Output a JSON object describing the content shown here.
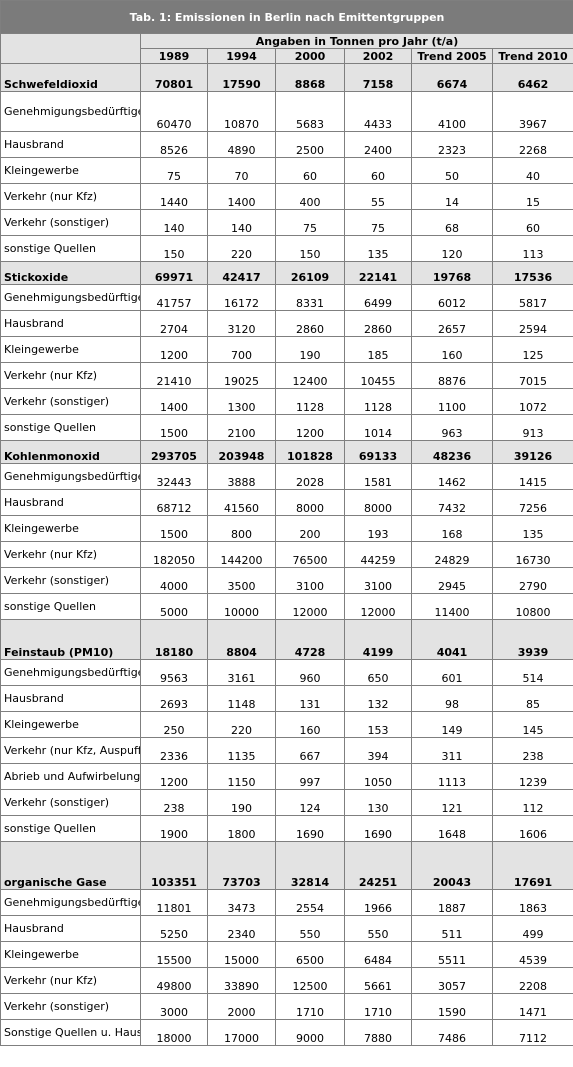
{
  "title": "Tab. 1: Emissionen in Berlin nach Emittentgruppen",
  "unit_header": "Angaben in Tonnen pro Jahr (t/a)",
  "years": [
    "1989",
    "1994",
    "2000",
    "2002",
    "Trend 2005",
    "Trend 2010"
  ],
  "groups": [
    {
      "name": "Schwefeldioxid",
      "total": [
        "70801",
        "17590",
        "8868",
        "7158",
        "6674",
        "6462"
      ],
      "rows": [
        {
          "label": "Genehmigungsbedürftige Anlagen",
          "values": [
            "60470",
            "10870",
            "5683",
            "4433",
            "4100",
            "3967"
          ]
        },
        {
          "label": "Hausbrand",
          "values": [
            "8526",
            "4890",
            "2500",
            "2400",
            "2323",
            "2268"
          ]
        },
        {
          "label": "Kleingewerbe",
          "values": [
            "75",
            "70",
            "60",
            "60",
            "50",
            "40"
          ]
        },
        {
          "label": "Verkehr (nur Kfz)",
          "values": [
            "1440",
            "1400",
            "400",
            "55",
            "14",
            "15"
          ]
        },
        {
          "label": "Verkehr (sonstiger)",
          "values": [
            "140",
            "140",
            "75",
            "75",
            "68",
            "60"
          ]
        },
        {
          "label": "sonstige Quellen",
          "values": [
            "150",
            "220",
            "150",
            "135",
            "120",
            "113"
          ]
        }
      ]
    },
    {
      "name": "Stickoxide",
      "total": [
        "69971",
        "42417",
        "26109",
        "22141",
        "19768",
        "17536"
      ],
      "rows": [
        {
          "label": "Genehmigungsbedürftige Anlagen",
          "values": [
            "41757",
            "16172",
            "8331",
            "6499",
            "6012",
            "5817"
          ]
        },
        {
          "label": "Hausbrand",
          "values": [
            "2704",
            "3120",
            "2860",
            "2860",
            "2657",
            "2594"
          ]
        },
        {
          "label": "Kleingewerbe",
          "values": [
            "1200",
            "700",
            "190",
            "185",
            "160",
            "125"
          ]
        },
        {
          "label": "Verkehr (nur Kfz)",
          "values": [
            "21410",
            "19025",
            "12400",
            "10455",
            "8876",
            "7015"
          ]
        },
        {
          "label": "Verkehr (sonstiger)",
          "values": [
            "1400",
            "1300",
            "1128",
            "1128",
            "1100",
            "1072"
          ]
        },
        {
          "label": "sonstige Quellen",
          "values": [
            "1500",
            "2100",
            "1200",
            "1014",
            "963",
            "913"
          ]
        }
      ]
    },
    {
      "name": "Kohlenmonoxid",
      "total": [
        "293705",
        "203948",
        "101828",
        "69133",
        "48236",
        "39126"
      ],
      "rows": [
        {
          "label": "Genehmigungsbedürftige Anlagen",
          "values": [
            "32443",
            "3888",
            "2028",
            "1581",
            "1462",
            "1415"
          ]
        },
        {
          "label": "Hausbrand",
          "values": [
            "68712",
            "41560",
            "8000",
            "8000",
            "7432",
            "7256"
          ]
        },
        {
          "label": "Kleingewerbe",
          "values": [
            "1500",
            "800",
            "200",
            "193",
            "168",
            "135"
          ]
        },
        {
          "label": "Verkehr (nur Kfz)",
          "values": [
            "182050",
            "144200",
            "76500",
            "44259",
            "24829",
            "16730"
          ]
        },
        {
          "label": "Verkehr (sonstiger)",
          "values": [
            "4000",
            "3500",
            "3100",
            "3100",
            "2945",
            "2790"
          ]
        },
        {
          "label": "sonstige Quellen",
          "values": [
            "5000",
            "10000",
            "12000",
            "12000",
            "11400",
            "10800"
          ]
        }
      ]
    },
    {
      "name": "Feinstaub (PM10)",
      "total": [
        "18180",
        "8804",
        "4728",
        "4199",
        "4041",
        "3939"
      ],
      "rows": [
        {
          "label": "Genehmigungsbedürftige Anlagen",
          "values": [
            "9563",
            "3161",
            "960",
            "650",
            "601",
            "514"
          ]
        },
        {
          "label": "Hausbrand",
          "values": [
            "2693",
            "1148",
            "131",
            "132",
            "98",
            "85"
          ]
        },
        {
          "label": "Kleingewerbe",
          "values": [
            "250",
            "220",
            "160",
            "153",
            "149",
            "145"
          ]
        },
        {
          "label": "Verkehr (nur Kfz, Auspuff)",
          "values": [
            "2336",
            "1135",
            "667",
            "394",
            "311",
            "238"
          ]
        },
        {
          "label": "Abrieb und Aufwirbelung durch Kfz-Verkehr",
          "values": [
            "1200",
            "1150",
            "997",
            "1050",
            "1113",
            "1239"
          ]
        },
        {
          "label": "Verkehr (sonstiger)",
          "values": [
            "238",
            "190",
            "124",
            "130",
            "121",
            "112"
          ]
        },
        {
          "label": "sonstige Quellen",
          "values": [
            "1900",
            "1800",
            "1690",
            "1690",
            "1648",
            "1606"
          ]
        }
      ]
    },
    {
      "name": "organische Gase",
      "total": [
        "103351",
        "73703",
        "32814",
        "24251",
        "20043",
        "17691"
      ],
      "rows": [
        {
          "label": "Genehmigungsbedürftige Anlagen",
          "values": [
            "11801",
            "3473",
            "2554",
            "1966",
            "1887",
            "1863"
          ]
        },
        {
          "label": "Hausbrand",
          "values": [
            "5250",
            "2340",
            "550",
            "550",
            "511",
            "499"
          ]
        },
        {
          "label": "Kleingewerbe",
          "values": [
            "15500",
            "15000",
            "6500",
            "6484",
            "5511",
            "4539"
          ]
        },
        {
          "label": "Verkehr (nur Kfz)",
          "values": [
            "49800",
            "33890",
            "12500",
            "5661",
            "3057",
            "2208"
          ]
        },
        {
          "label": "Verkehr (sonstiger)",
          "values": [
            "3000",
            "2000",
            "1710",
            "1710",
            "1590",
            "1471"
          ]
        },
        {
          "label": "Sonstige Quellen u. Haushalte",
          "values": [
            "18000",
            "17000",
            "9000",
            "7880",
            "7486",
            "7112"
          ]
        }
      ]
    }
  ]
}
